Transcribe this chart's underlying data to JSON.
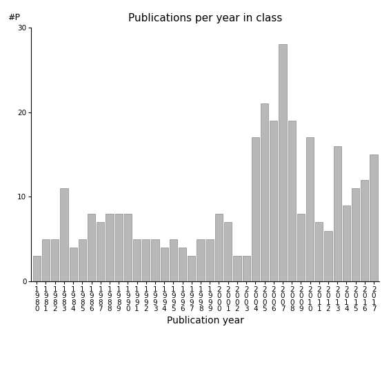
{
  "title": "Publications per year in class",
  "xlabel": "Publication year",
  "ylabel": "#P",
  "years": [
    1980,
    1981,
    1982,
    1983,
    1984,
    1985,
    1986,
    1987,
    1988,
    1989,
    1990,
    1991,
    1992,
    1993,
    1994,
    1995,
    1996,
    1997,
    1998,
    1999,
    2000,
    2001,
    2002,
    2003,
    2004,
    2005,
    2006,
    2007,
    2008,
    2009,
    2010,
    2011,
    2012,
    2013,
    2014,
    2015,
    2016,
    2017
  ],
  "values": [
    3,
    5,
    5,
    11,
    4,
    5,
    8,
    7,
    8,
    8,
    8,
    5,
    5,
    5,
    4,
    5,
    4,
    3,
    5,
    5,
    8,
    7,
    3,
    3,
    17,
    21,
    19,
    28,
    19,
    8,
    17,
    7,
    6,
    16,
    9,
    11,
    12,
    15
  ],
  "bar_color": "#b8b8b8",
  "bar_edge_color": "#888888",
  "ylim": [
    0,
    30
  ],
  "yticks": [
    0,
    10,
    20,
    30
  ],
  "background_color": "#ffffff",
  "title_fontsize": 11,
  "xlabel_fontsize": 10,
  "ylabel_fontsize": 9,
  "tick_fontsize": 7.5
}
